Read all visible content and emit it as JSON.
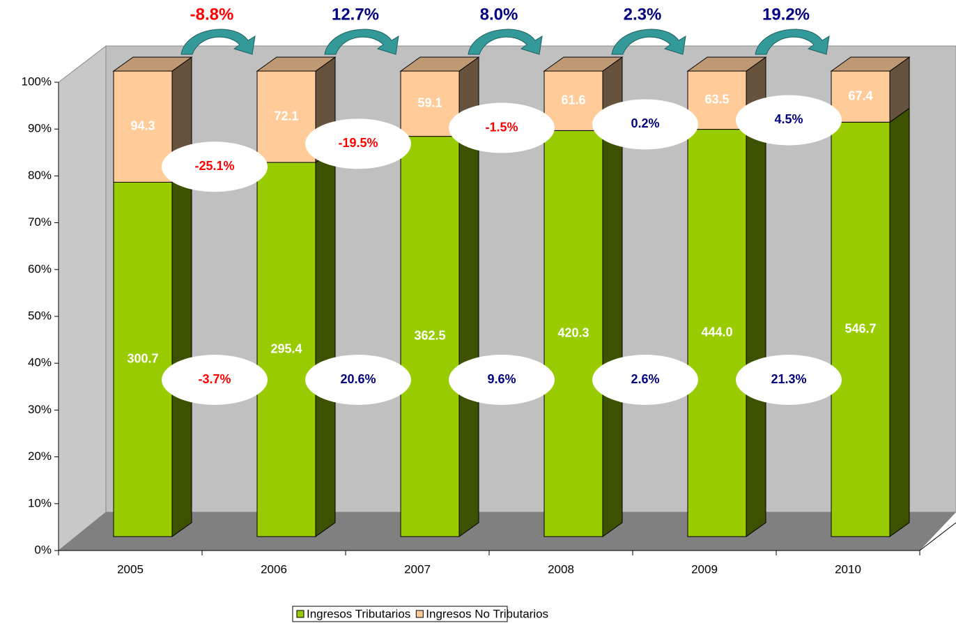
{
  "chart_data": {
    "type": "bar",
    "stacking": "percent",
    "categories": [
      "2005",
      "2006",
      "2007",
      "2008",
      "2009",
      "2010"
    ],
    "series": [
      {
        "name": "Ingresos Tributarios",
        "color": "#99cc00",
        "values": [
          300.7,
          295.4,
          362.5,
          420.3,
          444.0,
          546.7
        ],
        "value_labels": [
          "300.7",
          "295.4",
          "362.5",
          "420.3",
          "444.0",
          "546.7"
        ]
      },
      {
        "name": "Ingresos No Tributarios",
        "color": "#ffcc99",
        "values": [
          94.3,
          72.1,
          59.1,
          61.6,
          63.5,
          67.4
        ],
        "value_labels": [
          "94.3",
          "72.1",
          "59.1",
          "61.6",
          "63.5",
          "67.4"
        ]
      }
    ],
    "ylim": [
      0,
      100
    ],
    "yticks": [
      {
        "value": 0,
        "label": "0%"
      },
      {
        "value": 10,
        "label": "10%"
      },
      {
        "value": 20,
        "label": "20%"
      },
      {
        "value": 30,
        "label": "30%"
      },
      {
        "value": 40,
        "label": "40%"
      },
      {
        "value": 50,
        "label": "50%"
      },
      {
        "value": 60,
        "label": "60%"
      },
      {
        "value": 70,
        "label": "70%"
      },
      {
        "value": 80,
        "label": "80%"
      },
      {
        "value": 90,
        "label": "90%"
      },
      {
        "value": 100,
        "label": "100%"
      }
    ],
    "total_growth": [
      {
        "value": -8.8,
        "label": "-8.8%"
      },
      {
        "value": 12.7,
        "label": "12.7%"
      },
      {
        "value": 8.0,
        "label": "8.0%"
      },
      {
        "value": 2.3,
        "label": "2.3%"
      },
      {
        "value": 19.2,
        "label": "19.2%"
      }
    ],
    "growth_by_series": [
      [
        {
          "value": -3.7,
          "label": "-3.7%"
        },
        {
          "value": 20.6,
          "label": "20.6%"
        },
        {
          "value": 9.6,
          "label": "9.6%"
        },
        {
          "value": 2.6,
          "label": "2.6%"
        },
        {
          "value": 21.3,
          "label": "21.3%"
        }
      ],
      [
        {
          "value": -25.1,
          "label": "-25.1%"
        },
        {
          "value": -19.5,
          "label": "-19.5%"
        },
        {
          "value": -1.5,
          "label": "-1.5%"
        },
        {
          "value": 0.2,
          "label": "0.2%"
        },
        {
          "value": 4.5,
          "label": "4.5%"
        }
      ]
    ],
    "negative_color": "#ff0000",
    "positive_color": "#000080",
    "legend": "bottom"
  }
}
